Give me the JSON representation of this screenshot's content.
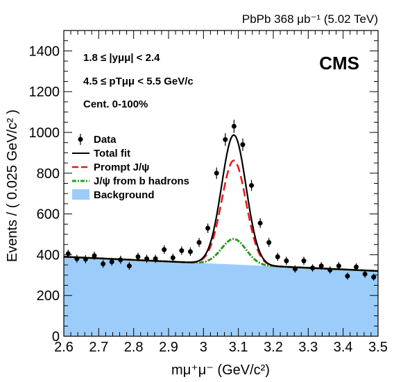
{
  "chart_data": {
    "type": "scatter",
    "top_title": "PbPb 368 μb⁻¹ (5.02 TeV)",
    "experiment": "CMS",
    "xlabel": "mμ⁺μ⁻ (GeV/c²)",
    "ylabel": "Events / ( 0.025 GeV/c² )",
    "xlim": [
      2.6,
      3.5
    ],
    "ylim": [
      0,
      1500
    ],
    "x_ticks": [
      "2.6",
      "2.7",
      "2.8",
      "2.9",
      "3",
      "3.1",
      "3.2",
      "3.3",
      "3.4",
      "3.5"
    ],
    "y_ticks": [
      "0",
      "200",
      "400",
      "600",
      "800",
      "1000",
      "1200",
      "1400"
    ],
    "annotations": [
      "1.8 ≤ |yμμ| < 2.4",
      "4.5 ≤ pTμμ < 5.5 GeV/c",
      "Cent. 0-100%"
    ],
    "legend_position": "upper-left",
    "legend": [
      "Data",
      "Total fit",
      "Prompt J/ψ",
      "J/ψ from b hadrons",
      "Background"
    ],
    "colors": {
      "data": "#000000",
      "total": "#000000",
      "prompt": "#e8161a",
      "nonprompt": "#2e9a1f",
      "background": "#9ccdfa"
    },
    "data_points": {
      "x": [
        2.6125,
        2.6375,
        2.6625,
        2.6875,
        2.7125,
        2.7375,
        2.7625,
        2.7875,
        2.8125,
        2.8375,
        2.8625,
        2.8875,
        2.9125,
        2.9375,
        2.9625,
        2.9875,
        3.0125,
        3.0375,
        3.0625,
        3.0875,
        3.1125,
        3.1375,
        3.1625,
        3.1875,
        3.2125,
        3.2375,
        3.2625,
        3.2875,
        3.3125,
        3.3375,
        3.3625,
        3.3875,
        3.4125,
        3.4375,
        3.4625,
        3.4875
      ],
      "y": [
        405,
        380,
        378,
        395,
        355,
        365,
        375,
        345,
        390,
        380,
        380,
        425,
        385,
        420,
        415,
        460,
        530,
        800,
        965,
        1030,
        940,
        740,
        555,
        460,
        390,
        370,
        330,
        370,
        335,
        345,
        325,
        345,
        295,
        340,
        305,
        290
      ],
      "err": [
        20,
        20,
        20,
        20,
        19,
        19,
        20,
        19,
        20,
        20,
        20,
        21,
        20,
        21,
        21,
        22,
        23,
        28,
        31,
        32,
        31,
        27,
        24,
        22,
        20,
        20,
        18,
        20,
        18,
        19,
        18,
        19,
        17,
        18,
        18,
        17
      ]
    },
    "model": {
      "background": {
        "start": 390,
        "end": 320
      },
      "prompt_peak": 510,
      "nonprompt_peak": 125,
      "mean": 3.087,
      "sigma": 0.035
    }
  }
}
